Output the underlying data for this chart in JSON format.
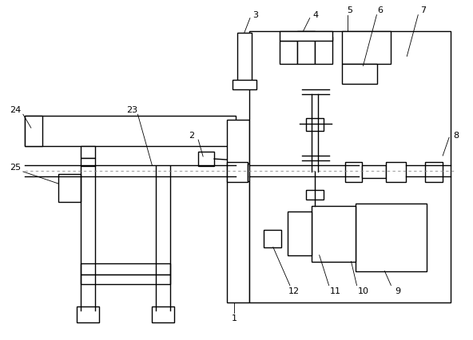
{
  "bg_color": "#ffffff",
  "line_color": "#000000",
  "lw": 1.0,
  "tlw": 0.6,
  "fig_width": 5.92,
  "fig_height": 4.26,
  "dpi": 100
}
